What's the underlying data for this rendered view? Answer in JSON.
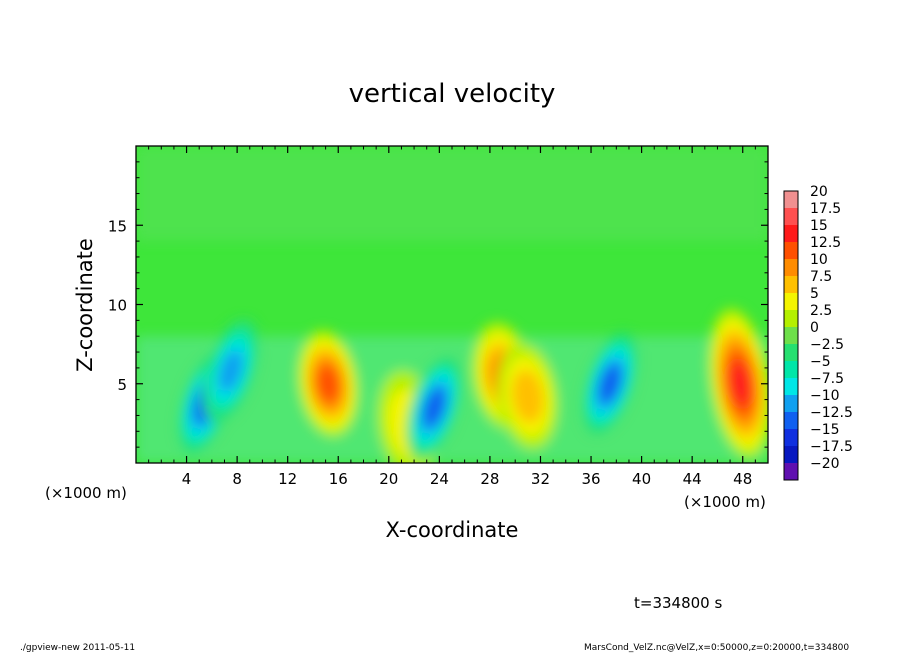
{
  "chart_data": {
    "type": "heatmap",
    "title": "vertical velocity",
    "xlabel": "X-coordinate",
    "ylabel": "Z-coordinate",
    "x_unit_left": "(×1000 m)",
    "x_unit_right": "(×1000 m)",
    "xlim": [
      0,
      50
    ],
    "ylim": [
      0,
      20
    ],
    "x_ticks": [
      "4",
      "8",
      "12",
      "16",
      "20",
      "24",
      "28",
      "32",
      "36",
      "40",
      "44",
      "48"
    ],
    "y_ticks": [
      "5",
      "10",
      "15"
    ],
    "colorbar": {
      "labels": [
        "20",
        "17.5",
        "15",
        "12.5",
        "10",
        "7.5",
        "5",
        "2.5",
        "0",
        "−2.5",
        "−5",
        "−7.5",
        "−10",
        "−12.5",
        "−15",
        "−17.5",
        "−20"
      ],
      "colors": [
        "#f09090",
        "#ff5050",
        "#ff1a1a",
        "#ff5000",
        "#ff8c00",
        "#ffc000",
        "#f4f400",
        "#b4f000",
        "#6ee04a",
        "#26e070",
        "#00e6a8",
        "#00e6e6",
        "#10a0f0",
        "#1060f0",
        "#1030e0",
        "#0818c0",
        "#6010b0"
      ]
    },
    "features": [
      {
        "kind": "downdraft",
        "x": 5.5,
        "z": 3.8,
        "peak": -11
      },
      {
        "kind": "downdraft",
        "x": 7.5,
        "z": 5.8,
        "peak": -8
      },
      {
        "kind": "updraft",
        "x": 15.2,
        "z": 5.0,
        "peak": 12
      },
      {
        "kind": "updraft",
        "x": 21.5,
        "z": 2.5,
        "peak": 3
      },
      {
        "kind": "downdraft",
        "x": 23.6,
        "z": 3.5,
        "peak": -11
      },
      {
        "kind": "updraft",
        "x": 29.0,
        "z": 5.5,
        "peak": 8
      },
      {
        "kind": "updraft",
        "x": 31.0,
        "z": 4.2,
        "peak": 7
      },
      {
        "kind": "downdraft",
        "x": 37.5,
        "z": 5.0,
        "peak": -12
      },
      {
        "kind": "updraft",
        "x": 47.8,
        "z": 5.0,
        "peak": 15
      }
    ],
    "time_label": "t=334800 s"
  },
  "footer": {
    "left": "./gpview-new   2011-05-11",
    "right": "MarsCond_VelZ.nc@VelZ,x=0:50000,z=0:20000,t=334800"
  }
}
